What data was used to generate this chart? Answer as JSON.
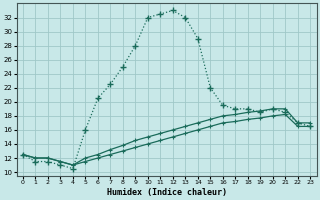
{
  "xlabel": "Humidex (Indice chaleur)",
  "background_color": "#c8e8e8",
  "grid_color": "#a0c8c8",
  "line_color": "#1a6b5a",
  "xlim_min": -0.5,
  "xlim_max": 23.5,
  "ylim_min": 9.5,
  "ylim_max": 34.0,
  "xticks": [
    0,
    1,
    2,
    3,
    4,
    5,
    6,
    7,
    8,
    9,
    10,
    11,
    12,
    13,
    14,
    15,
    16,
    17,
    18,
    19,
    20,
    21,
    22,
    23
  ],
  "yticks": [
    10,
    12,
    14,
    16,
    18,
    20,
    22,
    24,
    26,
    28,
    30,
    32
  ],
  "main_x": [
    0,
    1,
    2,
    3,
    4,
    5,
    6,
    7,
    8,
    9,
    10,
    11,
    12,
    13,
    14,
    15,
    16,
    17,
    18,
    19,
    20,
    21,
    22,
    23
  ],
  "main_y": [
    12.5,
    11.5,
    11.5,
    11.0,
    10.5,
    16.0,
    20.5,
    22.5,
    25.0,
    28.0,
    32.0,
    32.5,
    33.0,
    32.0,
    29.0,
    22.0,
    19.5,
    19.0,
    19.0,
    18.5,
    19.0,
    18.5,
    17.0,
    16.5
  ],
  "lin1_x": [
    0,
    1,
    2,
    3,
    4,
    5,
    6,
    7,
    8,
    9,
    10,
    11,
    12,
    13,
    14,
    15,
    16,
    17,
    18,
    19,
    20,
    21,
    22,
    23
  ],
  "lin1_y": [
    12.5,
    12.0,
    12.0,
    11.5,
    11.0,
    11.5,
    12.0,
    12.5,
    13.0,
    13.5,
    14.0,
    14.5,
    15.0,
    15.5,
    16.0,
    16.5,
    17.0,
    17.2,
    17.5,
    17.7,
    18.0,
    18.2,
    16.5,
    16.5
  ],
  "lin2_x": [
    0,
    1,
    2,
    3,
    4,
    5,
    6,
    7,
    8,
    9,
    10,
    11,
    12,
    13,
    14,
    15,
    16,
    17,
    18,
    19,
    20,
    21,
    22,
    23
  ],
  "lin2_y": [
    12.5,
    12.0,
    12.0,
    11.5,
    11.0,
    12.0,
    12.5,
    13.2,
    13.8,
    14.5,
    15.0,
    15.5,
    16.0,
    16.5,
    17.0,
    17.5,
    18.0,
    18.2,
    18.5,
    18.7,
    19.0,
    19.0,
    17.0,
    17.0
  ]
}
